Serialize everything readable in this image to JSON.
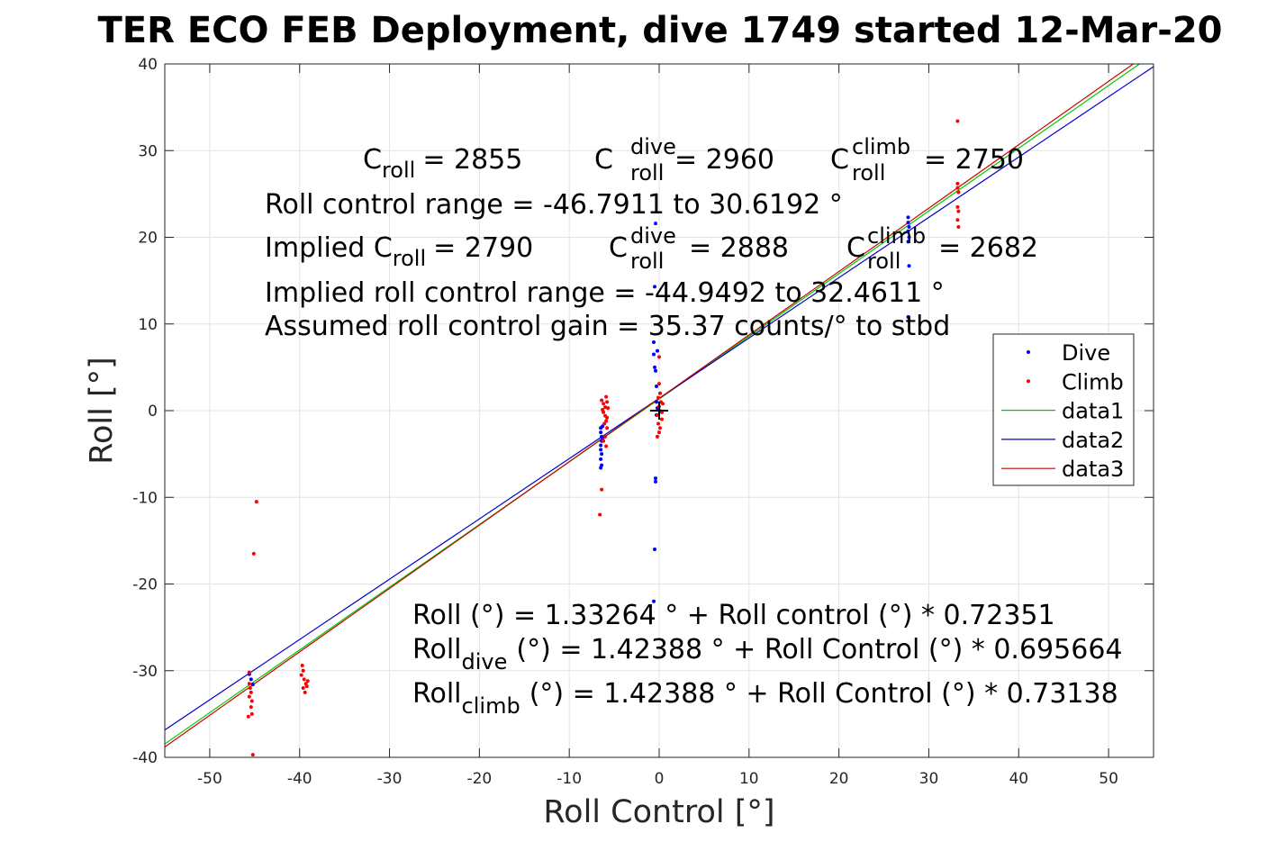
{
  "chart_data": {
    "type": "scatter",
    "title": "TER ECO FEB Deployment, dive 1749 started 12-Mar-20",
    "xlabel": "Roll Control [°]",
    "ylabel": "Roll [°]",
    "xlim": [
      -55,
      55
    ],
    "ylim": [
      -40,
      40
    ],
    "xticks": [
      -50,
      -40,
      -30,
      -20,
      -10,
      0,
      10,
      20,
      30,
      40,
      50
    ],
    "yticks": [
      -40,
      -30,
      -20,
      -10,
      0,
      10,
      20,
      30,
      40
    ],
    "grid": true,
    "legend_position": "right",
    "legend": [
      "Dive",
      "Climb",
      "data1",
      "data2",
      "data3"
    ],
    "series": [
      {
        "name": "Dive",
        "style": "points",
        "color": "#0000ff",
        "points": [
          [
            -45.6,
            -30.4
          ],
          [
            -45.4,
            -31.0
          ],
          [
            -45.2,
            -31.6
          ],
          [
            -6.5,
            -2.0
          ],
          [
            -6.5,
            -2.5
          ],
          [
            -6.4,
            -3.0
          ],
          [
            -6.4,
            -3.5
          ],
          [
            -6.5,
            -4.0
          ],
          [
            -6.5,
            -4.5
          ],
          [
            -6.4,
            -5.0
          ],
          [
            -6.5,
            -5.6
          ],
          [
            -6.4,
            -6.3
          ],
          [
            -6.5,
            -6.6
          ],
          [
            -6.3,
            -1.8
          ],
          [
            -6.3,
            -3.2
          ],
          [
            -0.4,
            21.6
          ],
          [
            -0.5,
            14.3
          ],
          [
            -0.6,
            7.9
          ],
          [
            -0.6,
            6.5
          ],
          [
            -0.5,
            5.0
          ],
          [
            -0.4,
            4.6
          ],
          [
            -0.2,
            6.9
          ],
          [
            -0.3,
            2.8
          ],
          [
            -0.3,
            1.0
          ],
          [
            -0.2,
            0.3
          ],
          [
            -0.3,
            -0.5
          ],
          [
            -0.4,
            -7.8
          ],
          [
            -0.4,
            -8.2
          ],
          [
            -0.5,
            -16.0
          ],
          [
            -0.6,
            -22.0
          ],
          [
            27.7,
            22.3
          ],
          [
            27.7,
            21.7
          ],
          [
            27.8,
            21.2
          ],
          [
            27.7,
            20.7
          ],
          [
            27.8,
            20.0
          ],
          [
            27.7,
            19.5
          ],
          [
            27.8,
            16.7
          ],
          [
            27.7,
            10.8
          ]
        ]
      },
      {
        "name": "Climb",
        "style": "points",
        "color": "#ff0000",
        "points": [
          [
            -44.8,
            -10.5
          ],
          [
            -45.1,
            -16.5
          ],
          [
            -45.6,
            -31.5
          ],
          [
            -45.5,
            -32.0
          ],
          [
            -45.4,
            -32.5
          ],
          [
            -45.6,
            -33.0
          ],
          [
            -45.3,
            -33.5
          ],
          [
            -45.4,
            -34.2
          ],
          [
            -45.3,
            -35.0
          ],
          [
            -45.2,
            -39.7
          ],
          [
            -45.6,
            -30.2
          ],
          [
            -45.7,
            -35.3
          ],
          [
            -39.7,
            -29.4
          ],
          [
            -39.6,
            -30.0
          ],
          [
            -39.8,
            -30.5
          ],
          [
            -39.5,
            -31.0
          ],
          [
            -39.3,
            -31.5
          ],
          [
            -39.6,
            -32.0
          ],
          [
            -39.4,
            -32.5
          ],
          [
            -39.2,
            -31.8
          ],
          [
            -39.1,
            -31.2
          ],
          [
            -6.4,
            -9.1
          ],
          [
            -6.6,
            -12.0
          ],
          [
            -6.4,
            1.2
          ],
          [
            -6.2,
            0.8
          ],
          [
            -6.0,
            0.4
          ],
          [
            -5.9,
            1.6
          ],
          [
            -5.8,
            1.0
          ],
          [
            -6.2,
            -0.2
          ],
          [
            -6.0,
            -0.6
          ],
          [
            -5.8,
            -0.8
          ],
          [
            -5.9,
            -1.2
          ],
          [
            -6.1,
            -1.5
          ],
          [
            -5.8,
            -2.0
          ],
          [
            -6.0,
            -3.0
          ],
          [
            -6.2,
            -3.5
          ],
          [
            -5.9,
            -4.1
          ],
          [
            -6.3,
            0.1
          ],
          [
            -5.7,
            0.3
          ],
          [
            0.0,
            6.2
          ],
          [
            0.0,
            3.1
          ],
          [
            0.1,
            2.0
          ],
          [
            -0.1,
            1.5
          ],
          [
            0.2,
            1.0
          ],
          [
            0.0,
            0.5
          ],
          [
            0.1,
            0.0
          ],
          [
            -0.2,
            -0.5
          ],
          [
            0.3,
            -1.0
          ],
          [
            -0.1,
            -1.5
          ],
          [
            0.1,
            -2.0
          ],
          [
            0.0,
            -2.5
          ],
          [
            -0.2,
            -3.0
          ],
          [
            0.3,
            -0.2
          ],
          [
            0.4,
            0.8
          ],
          [
            33.2,
            33.4
          ],
          [
            33.2,
            26.2
          ],
          [
            33.2,
            25.7
          ],
          [
            33.3,
            25.2
          ],
          [
            33.2,
            23.5
          ],
          [
            33.3,
            23.0
          ],
          [
            33.2,
            22.0
          ],
          [
            33.3,
            21.2
          ]
        ]
      },
      {
        "name": "data1",
        "style": "line",
        "color": "#00cc00",
        "points": [
          [
            -55,
            -38.46
          ],
          [
            55,
            41.13
          ]
        ]
      },
      {
        "name": "data2",
        "style": "line",
        "color": "#0000cc",
        "points": [
          [
            -55,
            -36.84
          ],
          [
            55,
            39.69
          ]
        ]
      },
      {
        "name": "data3",
        "style": "line",
        "color": "#cc0000",
        "points": [
          [
            -55,
            -38.8
          ],
          [
            55,
            41.65
          ]
        ]
      }
    ],
    "cross_marker": {
      "x": 0,
      "y": 0
    }
  },
  "annotations": {
    "top": {
      "c_roll_label": "C",
      "c_roll_sub": "roll",
      "c_roll_val": "= 2855",
      "c_dive_label": "C",
      "c_dive_sup": "dive",
      "c_dive_sub": "roll",
      "c_dive_val": "= 2960",
      "c_climb_label": "C",
      "c_climb_sup": "climb",
      "c_climb_sub": "roll",
      "c_climb_val": "= 2750",
      "range": "Roll control range = -46.7911 to 30.6192 °",
      "implied_label": "Implied C",
      "implied_sub": "roll",
      "implied_val": "= 2790",
      "implied_dive_label": "C",
      "implied_dive_sup": "dive",
      "implied_dive_sub": "roll",
      "implied_dive_val": "= 2888",
      "implied_climb_label": "C",
      "implied_climb_sup": "climb",
      "implied_climb_sub": "roll",
      "implied_climb_val": "= 2682",
      "implied_range": "Implied roll control range = -44.9492 to 32.4611 °",
      "gain": "Assumed roll control gain = 35.37 counts/° to stbd"
    },
    "bottom": {
      "eq1": "Roll (°) = 1.33264 ° + Roll control (°) * 0.72351",
      "eq2_label": "Roll",
      "eq2_sub": "dive",
      "eq2_rest": "(°) = 1.42388 ° + Roll Control (°) * 0.695664",
      "eq3_label": "Roll",
      "eq3_sub": "climb",
      "eq3_rest": "(°) = 1.42388 ° + Roll Control (°) * 0.73138"
    }
  }
}
